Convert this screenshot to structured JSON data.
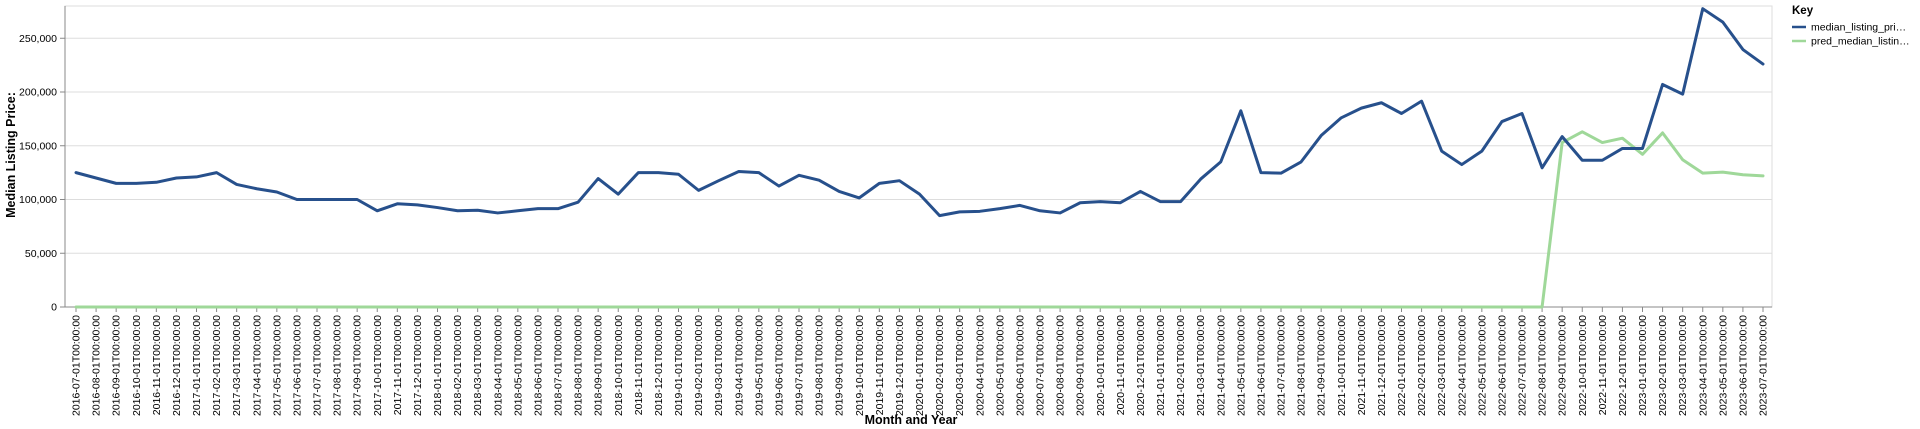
{
  "chart_data": {
    "type": "line",
    "xlabel": "Month and Year",
    "ylabel": "Median Listing Price:",
    "ylim": [
      0,
      280000
    ],
    "yticks": [
      0,
      50000,
      100000,
      150000,
      200000,
      250000
    ],
    "ytick_labels": [
      "0",
      "50,000",
      "100,000",
      "150,000",
      "200,000",
      "250,000"
    ],
    "grid": true,
    "legend": {
      "title": "Key",
      "placement": "top-right"
    },
    "x": [
      "2016-07-01T00:00:00",
      "2016-08-01T00:00:00",
      "2016-09-01T00:00:00",
      "2016-10-01T00:00:00",
      "2016-11-01T00:00:00",
      "2016-12-01T00:00:00",
      "2017-01-01T00:00:00",
      "2017-02-01T00:00:00",
      "2017-03-01T00:00:00",
      "2017-04-01T00:00:00",
      "2017-05-01T00:00:00",
      "2017-06-01T00:00:00",
      "2017-07-01T00:00:00",
      "2017-08-01T00:00:00",
      "2017-09-01T00:00:00",
      "2017-10-01T00:00:00",
      "2017-11-01T00:00:00",
      "2017-12-01T00:00:00",
      "2018-01-01T00:00:00",
      "2018-02-01T00:00:00",
      "2018-03-01T00:00:00",
      "2018-04-01T00:00:00",
      "2018-05-01T00:00:00",
      "2018-06-01T00:00:00",
      "2018-07-01T00:00:00",
      "2018-08-01T00:00:00",
      "2018-09-01T00:00:00",
      "2018-10-01T00:00:00",
      "2018-11-01T00:00:00",
      "2018-12-01T00:00:00",
      "2019-01-01T00:00:00",
      "2019-02-01T00:00:00",
      "2019-03-01T00:00:00",
      "2019-04-01T00:00:00",
      "2019-05-01T00:00:00",
      "2019-06-01T00:00:00",
      "2019-07-01T00:00:00",
      "2019-08-01T00:00:00",
      "2019-09-01T00:00:00",
      "2019-10-01T00:00:00",
      "2019-11-01T00:00:00",
      "2019-12-01T00:00:00",
      "2020-01-01T00:00:00",
      "2020-02-01T00:00:00",
      "2020-03-01T00:00:00",
      "2020-04-01T00:00:00",
      "2020-05-01T00:00:00",
      "2020-06-01T00:00:00",
      "2020-07-01T00:00:00",
      "2020-08-01T00:00:00",
      "2020-09-01T00:00:00",
      "2020-10-01T00:00:00",
      "2020-11-01T00:00:00",
      "2020-12-01T00:00:00",
      "2021-01-01T00:00:00",
      "2021-02-01T00:00:00",
      "2021-03-01T00:00:00",
      "2021-04-01T00:00:00",
      "2021-05-01T00:00:00",
      "2021-06-01T00:00:00",
      "2021-07-01T00:00:00",
      "2021-08-01T00:00:00",
      "2021-09-01T00:00:00",
      "2021-10-01T00:00:00",
      "2021-11-01T00:00:00",
      "2021-12-01T00:00:00",
      "2022-01-01T00:00:00",
      "2022-02-01T00:00:00",
      "2022-03-01T00:00:00",
      "2022-04-01T00:00:00",
      "2022-05-01T00:00:00",
      "2022-06-01T00:00:00",
      "2022-07-01T00:00:00",
      "2022-08-01T00:00:00",
      "2022-09-01T00:00:00",
      "2022-10-01T00:00:00",
      "2022-11-01T00:00:00",
      "2022-12-01T00:00:00",
      "2023-01-01T00:00:00",
      "2023-02-01T00:00:00",
      "2023-03-01T00:00:00",
      "2023-04-01T00:00:00",
      "2023-05-01T00:00:00",
      "2023-06-01T00:00:00",
      "2023-07-01T00:00:00"
    ],
    "series": [
      {
        "name": "median_listing_pri…",
        "color": "#27508c",
        "values": [
          125000,
          120000,
          115000,
          115000,
          116000,
          120000,
          121000,
          125000,
          114000,
          110000,
          107000,
          100000,
          100000,
          100000,
          100000,
          89500,
          96000,
          95000,
          92500,
          89500,
          90000,
          87500,
          89500,
          91500,
          91500,
          97500,
          119500,
          105000,
          125000,
          125000,
          123500,
          108500,
          117500,
          126000,
          125000,
          112500,
          122500,
          118000,
          107500,
          101500,
          115000,
          117500,
          105000,
          85000,
          88500,
          89000,
          91500,
          94500,
          89500,
          87500,
          97000,
          98000,
          97000,
          107500,
          98000,
          98000,
          119000,
          135000,
          182500,
          125000,
          124500,
          135000,
          159500,
          176000,
          185000,
          190000,
          180000,
          191500,
          145000,
          132500,
          145000,
          172500,
          180000,
          129500,
          158500,
          136500,
          136500,
          147500,
          147500,
          207000,
          198000,
          277500,
          265000,
          239500,
          226000
        ]
      },
      {
        "name": "pred_median_listin…",
        "color": "#9fd899",
        "values": [
          0,
          0,
          0,
          0,
          0,
          0,
          0,
          0,
          0,
          0,
          0,
          0,
          0,
          0,
          0,
          0,
          0,
          0,
          0,
          0,
          0,
          0,
          0,
          0,
          0,
          0,
          0,
          0,
          0,
          0,
          0,
          0,
          0,
          0,
          0,
          0,
          0,
          0,
          0,
          0,
          0,
          0,
          0,
          0,
          0,
          0,
          0,
          0,
          0,
          0,
          0,
          0,
          0,
          0,
          0,
          0,
          0,
          0,
          0,
          0,
          0,
          0,
          0,
          0,
          0,
          0,
          0,
          0,
          0,
          0,
          0,
          0,
          0,
          0,
          153000,
          163000,
          153000,
          157000,
          142000,
          162000,
          137000,
          124500,
          125500,
          123000,
          122000
        ]
      }
    ]
  }
}
